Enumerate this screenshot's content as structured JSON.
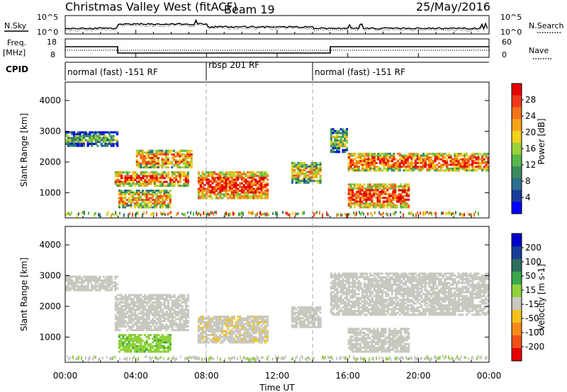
{
  "header": {
    "title": "Christmas Valley West (fitACF)",
    "beam": "Beam 19",
    "date": "25/May/2016"
  },
  "noise_panel": {
    "left_label": "N.Sky",
    "right_label": "N.Search",
    "left_ticks": [
      "10^5",
      "10^0"
    ],
    "right_ticks": [
      "10^5",
      "10^0"
    ]
  },
  "freq_panel": {
    "left_label_line1": "Freq.",
    "left_label_line2": "[MHz]",
    "right_label": "Nave",
    "left_ticks": [
      "18",
      "8"
    ],
    "right_ticks": [
      "60",
      "0"
    ]
  },
  "cpid": {
    "label": "CPID",
    "segments": [
      {
        "label": "normal (fast) -151 RF",
        "start_h": 0,
        "end_h": 8
      },
      {
        "label": "rbsp 201 RF",
        "start_h": 8,
        "end_h": 14
      },
      {
        "label": "normal (fast) -151 RF",
        "start_h": 14,
        "end_h": 24
      }
    ]
  },
  "colors": {
    "power_scale": [
      "#0000ff",
      "#1a3c9a",
      "#2e6e8e",
      "#3a8c5e",
      "#5ab84a",
      "#9bd23a",
      "#f2d21a",
      "#f7a21a",
      "#f2721a",
      "#ee3a1a",
      "#e60000"
    ],
    "velocity_scale": [
      "#0000cc",
      "#1a3c9a",
      "#2e6e5e",
      "#3aa84a",
      "#8fd23a",
      "#c8c8c0",
      "#f2c21a",
      "#f58a1a",
      "#f2521a",
      "#e60000"
    ],
    "ground_scatter": "#c8c8c0"
  },
  "chart_data": [
    {
      "type": "heatmap",
      "name": "power",
      "xlabel": "Time UT",
      "ylabel": "Slant Range [km]",
      "xlim": [
        0,
        24
      ],
      "ylim": [
        180,
        4600
      ],
      "x_ticks": [
        "00:00",
        "04:00",
        "08:00",
        "12:00",
        "16:00",
        "20:00",
        "00:00"
      ],
      "y_ticks": [
        1000,
        2000,
        3000,
        4000
      ],
      "colorbar": {
        "label": "Power [dB]",
        "ticks": [
          4,
          8,
          12,
          16,
          20,
          24,
          28
        ],
        "range": [
          0,
          30
        ]
      },
      "regions": [
        {
          "t0": 0.0,
          "t1": 3.0,
          "r0": 2500,
          "r1": 3000,
          "value": 12
        },
        {
          "t0": 2.8,
          "t1": 7.0,
          "r0": 1200,
          "r1": 1700,
          "value": 24
        },
        {
          "t0": 4.0,
          "t1": 7.2,
          "r0": 1800,
          "r1": 2400,
          "value": 22
        },
        {
          "t0": 3.0,
          "t1": 6.0,
          "r0": 500,
          "r1": 1100,
          "value": 20
        },
        {
          "t0": 7.5,
          "t1": 11.5,
          "r0": 800,
          "r1": 1700,
          "value": 26
        },
        {
          "t0": 12.8,
          "t1": 14.5,
          "r0": 1300,
          "r1": 2000,
          "value": 20
        },
        {
          "t0": 15.0,
          "t1": 16.0,
          "r0": 2300,
          "r1": 3100,
          "value": 14
        },
        {
          "t0": 16.0,
          "t1": 24.0,
          "r0": 1700,
          "r1": 2300,
          "value": 24
        },
        {
          "t0": 16.0,
          "t1": 19.5,
          "r0": 500,
          "r1": 1300,
          "value": 26
        }
      ]
    },
    {
      "type": "heatmap",
      "name": "velocity",
      "xlabel": "Time UT",
      "ylabel": "Slant Range [km]",
      "xlim": [
        0,
        24
      ],
      "ylim": [
        180,
        4600
      ],
      "x_ticks": [
        "00:00",
        "04:00",
        "08:00",
        "12:00",
        "16:00",
        "20:00",
        "00:00"
      ],
      "y_ticks": [
        1000,
        2000,
        3000,
        4000
      ],
      "colorbar": {
        "label": "Velocity [m s-1]",
        "ticks": [
          200,
          100,
          50,
          15,
          -15,
          -50,
          -100,
          -200
        ],
        "range": [
          -250,
          250
        ]
      },
      "regions": [
        {
          "t0": 0.0,
          "t1": 3.0,
          "r0": 2500,
          "r1": 3000,
          "value": 0
        },
        {
          "t0": 2.8,
          "t1": 7.0,
          "r0": 1200,
          "r1": 2400,
          "value": 0
        },
        {
          "t0": 3.0,
          "t1": 6.0,
          "r0": 500,
          "r1": 1100,
          "value": 40
        },
        {
          "t0": 7.5,
          "t1": 11.5,
          "r0": 800,
          "r1": 1700,
          "value": -40
        },
        {
          "t0": 12.8,
          "t1": 14.5,
          "r0": 1300,
          "r1": 2000,
          "value": 0
        },
        {
          "t0": 15.0,
          "t1": 24.0,
          "r0": 1700,
          "r1": 3100,
          "value": 0
        },
        {
          "t0": 16.0,
          "t1": 19.5,
          "r0": 500,
          "r1": 1300,
          "value": 0
        }
      ]
    }
  ]
}
